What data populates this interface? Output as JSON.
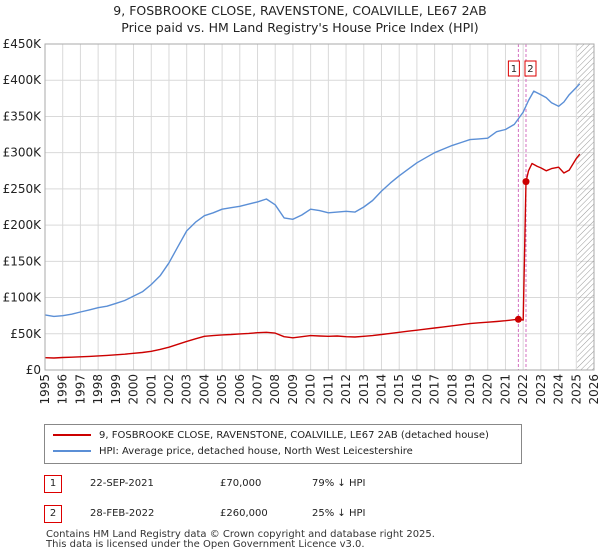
{
  "title_line1": "9, FOSBROOKE CLOSE, RAVENSTONE, COALVILLE, LE67 2AB",
  "title_line2": "Price paid vs. HM Land Registry's House Price Index (HPI)",
  "colors": {
    "property": "#cc0000",
    "hpi": "#5b8fd6",
    "marker_line": "#d46fc0",
    "future_hatch": "#999999",
    "grid": "#d9d9d9",
    "box_border": "#dd0000"
  },
  "chart_data": {
    "type": "line",
    "title": "Price paid vs. HM Land Registry's House Price Index (HPI)",
    "xlabel": "",
    "ylabel": "",
    "xlim": [
      1995,
      2026
    ],
    "ylim": [
      0,
      450000
    ],
    "y_ticks": [
      0,
      50000,
      100000,
      150000,
      200000,
      250000,
      300000,
      350000,
      400000,
      450000
    ],
    "y_tick_labels": [
      "£0",
      "£50K",
      "£100K",
      "£150K",
      "£200K",
      "£250K",
      "£300K",
      "£350K",
      "£400K",
      "£450K"
    ],
    "x_ticks": [
      1995,
      1996,
      1997,
      1998,
      1999,
      2000,
      2001,
      2002,
      2003,
      2004,
      2005,
      2006,
      2007,
      2008,
      2009,
      2010,
      2011,
      2012,
      2013,
      2014,
      2015,
      2016,
      2017,
      2018,
      2019,
      2020,
      2021,
      2022,
      2023,
      2024,
      2025,
      2026
    ],
    "x_tick_labels": [
      "1995",
      "1996",
      "1997",
      "1998",
      "1999",
      "2000",
      "2001",
      "2002",
      "2003",
      "2004",
      "2005",
      "2006",
      "2007",
      "2008",
      "2009",
      "2010",
      "2011",
      "2012",
      "2013",
      "2014",
      "2015",
      "2016",
      "2017",
      "2018",
      "2019",
      "2020",
      "2021",
      "2022",
      "2023",
      "2024",
      "2025",
      "2026"
    ],
    "future_hatch_from": 2025.05,
    "series": [
      {
        "name": "9, FOSBROOKE CLOSE, RAVENSTONE, COALVILLE, LE67 2AB (detached house)",
        "color": "#cc0000",
        "x": [
          1995.0,
          1995.5,
          1996.0,
          1996.5,
          1997.0,
          1997.5,
          1998.0,
          1998.5,
          1999.0,
          1999.5,
          2000.0,
          2000.5,
          2001.0,
          2001.5,
          2002.0,
          2002.5,
          2003.0,
          2003.5,
          2004.0,
          2004.5,
          2005.0,
          2005.5,
          2006.0,
          2006.5,
          2007.0,
          2007.5,
          2008.0,
          2008.5,
          2009.0,
          2009.5,
          2010.0,
          2010.5,
          2011.0,
          2011.5,
          2012.0,
          2012.5,
          2013.0,
          2013.5,
          2014.0,
          2014.5,
          2015.0,
          2015.5,
          2016.0,
          2016.5,
          2017.0,
          2017.5,
          2018.0,
          2018.5,
          2019.0,
          2019.5,
          2020.0,
          2020.5,
          2021.0,
          2021.5,
          2021.73,
          2022.0,
          2022.16,
          2022.3,
          2022.5,
          2022.8,
          2023.0,
          2023.3,
          2023.6,
          2024.0,
          2024.3,
          2024.6,
          2025.0,
          2025.2
        ],
        "y": [
          17000,
          16500,
          17200,
          17600,
          18200,
          18800,
          19500,
          20100,
          21000,
          21800,
          23000,
          24200,
          25800,
          28500,
          31500,
          35500,
          39500,
          43000,
          46500,
          47500,
          48500,
          49000,
          49800,
          50500,
          51500,
          52000,
          51000,
          46000,
          44500,
          46000,
          47500,
          47000,
          46500,
          47000,
          46000,
          45500,
          46500,
          47500,
          49000,
          50500,
          52000,
          53500,
          55000,
          56500,
          58000,
          59500,
          61000,
          62500,
          64000,
          65200,
          66000,
          67000,
          68000,
          69500,
          70000,
          69000,
          260000,
          275000,
          285000,
          281000,
          279000,
          275000,
          278000,
          280000,
          272000,
          276000,
          292000,
          298000
        ]
      },
      {
        "name": "HPI: Average price, detached house, North West Leicestershire",
        "color": "#5b8fd6",
        "x": [
          1995.0,
          1995.5,
          1996.0,
          1996.5,
          1997.0,
          1997.5,
          1998.0,
          1998.5,
          1999.0,
          1999.5,
          2000.0,
          2000.5,
          2001.0,
          2001.5,
          2002.0,
          2002.5,
          2003.0,
          2003.5,
          2004.0,
          2004.5,
          2005.0,
          2005.5,
          2006.0,
          2006.5,
          2007.0,
          2007.5,
          2008.0,
          2008.5,
          2009.0,
          2009.5,
          2010.0,
          2010.5,
          2011.0,
          2011.5,
          2012.0,
          2012.5,
          2013.0,
          2013.5,
          2014.0,
          2014.5,
          2015.0,
          2015.5,
          2016.0,
          2016.5,
          2017.0,
          2017.5,
          2018.0,
          2018.5,
          2019.0,
          2019.5,
          2020.0,
          2020.5,
          2021.0,
          2021.5,
          2022.0,
          2022.3,
          2022.6,
          2023.0,
          2023.3,
          2023.6,
          2024.0,
          2024.3,
          2024.6,
          2025.0,
          2025.2
        ],
        "y": [
          76000,
          74000,
          75000,
          77000,
          80000,
          83000,
          86000,
          88000,
          92000,
          96000,
          102000,
          108000,
          118000,
          130000,
          148000,
          170000,
          192000,
          204000,
          213000,
          217000,
          222000,
          224000,
          226000,
          229000,
          232000,
          236000,
          228000,
          210000,
          208000,
          214000,
          222000,
          220000,
          217000,
          218000,
          219000,
          218000,
          225000,
          234000,
          247000,
          258000,
          268000,
          277000,
          286000,
          293000,
          300000,
          305000,
          310000,
          314000,
          318000,
          319000,
          320000,
          329000,
          332000,
          339000,
          356000,
          372000,
          385000,
          380000,
          376000,
          369000,
          364000,
          370000,
          380000,
          390000,
          395000
        ]
      }
    ],
    "markers": [
      {
        "label": "1",
        "x": 2021.73,
        "y": 70000
      },
      {
        "label": "2",
        "x": 2022.16,
        "y": 260000
      }
    ]
  },
  "legend": {
    "property_label": "9, FOSBROOKE CLOSE, RAVENSTONE, COALVILLE, LE67 2AB (detached house)",
    "hpi_label": "HPI: Average price, detached house, North West Leicestershire"
  },
  "transactions": [
    {
      "num": "1",
      "date": "22-SEP-2021",
      "price": "£70,000",
      "hpi": "79% ↓ HPI"
    },
    {
      "num": "2",
      "date": "28-FEB-2022",
      "price": "£260,000",
      "hpi": "25% ↓ HPI"
    }
  ],
  "footer": {
    "line1": "Contains HM Land Registry data © Crown copyright and database right 2025.",
    "line2": "This data is licensed under the Open Government Licence v3.0."
  }
}
